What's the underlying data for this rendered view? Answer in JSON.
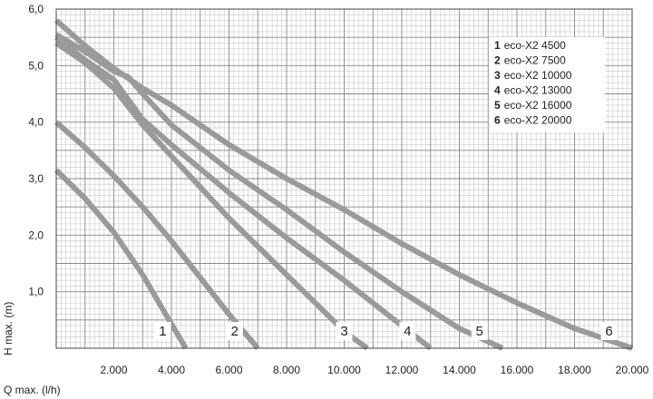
{
  "chart_data": {
    "type": "line",
    "xlabel": "Q max. (l/h)",
    "ylabel": "H max. (m)",
    "xlim": [
      0,
      20000
    ],
    "ylim": [
      0,
      6.0
    ],
    "x_tick_values": [
      2000,
      4000,
      6000,
      8000,
      10000,
      12000,
      14000,
      16000,
      18000,
      20000
    ],
    "x_tick_labels": [
      "2.000",
      "4.000",
      "6.000",
      "8.000",
      "10.000",
      "12.000",
      "14.000",
      "16.000",
      "18.000",
      "20.000"
    ],
    "y_tick_values": [
      1.0,
      2.0,
      3.0,
      4.0,
      5.0,
      6.0
    ],
    "y_tick_labels": [
      "1,0",
      "2,0",
      "3,0",
      "4,0",
      "5,0",
      "6,0"
    ],
    "grid": true,
    "legend_position": "top-right",
    "series_color": "#9a9a9a",
    "series": [
      {
        "number": "1",
        "name": "eco-X2 4500",
        "x": [
          0,
          1000,
          2000,
          3000,
          3800,
          4500
        ],
        "y": [
          3.15,
          2.65,
          2.05,
          1.3,
          0.6,
          0.0
        ]
      },
      {
        "number": "2",
        "name": "eco-X2 7500",
        "x": [
          0,
          1000,
          2000,
          3000,
          4000,
          5000,
          6000,
          7000
        ],
        "y": [
          4.0,
          3.55,
          3.05,
          2.5,
          1.9,
          1.25,
          0.6,
          0.0
        ]
      },
      {
        "number": "3",
        "name": "eco-X2 10000",
        "x": [
          0,
          1000,
          2000,
          3000,
          4000,
          5000,
          6000,
          7000,
          8000,
          9000,
          10000,
          10800
        ],
        "y": [
          5.4,
          5.05,
          4.6,
          3.95,
          3.4,
          2.85,
          2.3,
          1.8,
          1.3,
          0.8,
          0.3,
          0.0
        ]
      },
      {
        "number": "4",
        "name": "eco-X2 13000",
        "x": [
          0,
          1000,
          2000,
          3000,
          4000,
          6000,
          8000,
          10000,
          12000,
          13000
        ],
        "y": [
          5.5,
          5.1,
          4.75,
          4.05,
          3.6,
          2.75,
          1.95,
          1.2,
          0.4,
          0.0
        ]
      },
      {
        "number": "5",
        "name": "eco-X2 16000",
        "x": [
          0,
          1000,
          2000,
          2500,
          3000,
          4000,
          6000,
          8000,
          10000,
          12000,
          14000,
          15500
        ],
        "y": [
          5.55,
          5.25,
          4.9,
          4.8,
          4.5,
          3.95,
          3.15,
          2.45,
          1.7,
          1.0,
          0.35,
          0.0
        ]
      },
      {
        "number": "6",
        "name": "eco-X2 20000",
        "x": [
          0,
          1000,
          2000,
          3000,
          4000,
          6000,
          8000,
          10000,
          12000,
          14000,
          16000,
          18000,
          20000
        ],
        "y": [
          5.8,
          5.35,
          4.95,
          4.6,
          4.3,
          3.6,
          3.0,
          2.45,
          1.85,
          1.3,
          0.8,
          0.35,
          0.0
        ]
      }
    ]
  }
}
